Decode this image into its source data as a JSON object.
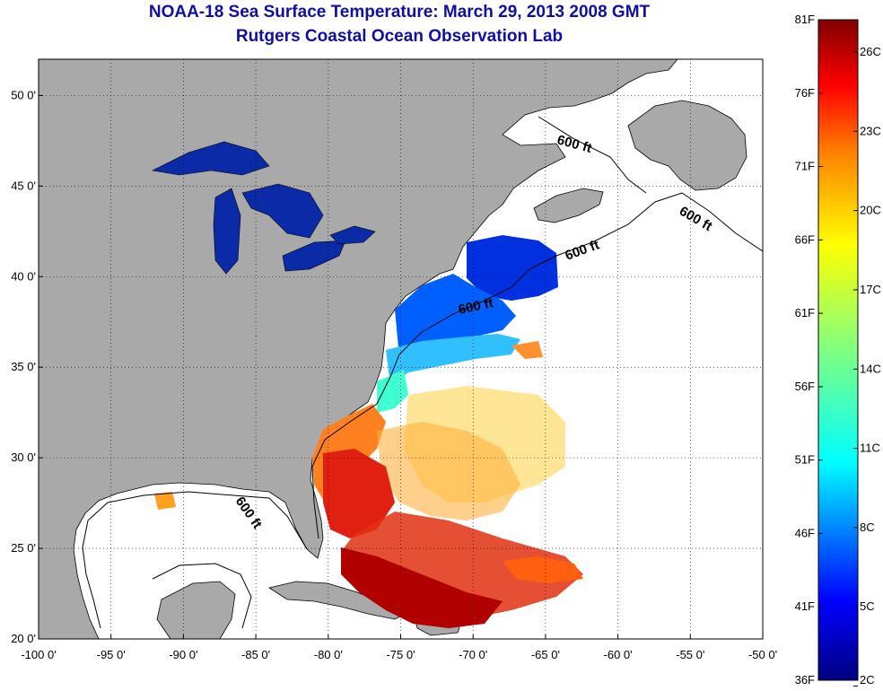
{
  "title": {
    "line1": "NOAA-18 Sea Surface Temperature:  March 29, 2013 2008 GMT",
    "line2": "Rutgers Coastal Ocean Observation Lab"
  },
  "map": {
    "lon_range": [
      -100,
      -50
    ],
    "lat_range": [
      20,
      52
    ],
    "lon_ticks": [
      "-100 0'",
      "-95 0'",
      "-90 0'",
      "-85 0'",
      "-80 0'",
      "-75 0'",
      "-70 0'",
      "-65 0'",
      "-60 0'",
      "-55 0'",
      "-50 0'"
    ],
    "lat_ticks": [
      "20 0'",
      "25 0'",
      "30 0'",
      "35 0'",
      "40 0'",
      "45 0'",
      "50 0'"
    ],
    "land_color": "#a9a9a9",
    "grid": "dotted",
    "contour_labels": [
      "600 ft",
      "600 ft",
      "600 ft",
      "600 ft",
      "600 ft"
    ]
  },
  "colorbar": {
    "fahrenheit_labels": [
      "81F",
      "76F",
      "71F",
      "66F",
      "61F",
      "56F",
      "51F",
      "46F",
      "41F",
      "36F"
    ],
    "celsius_labels": [
      "26C",
      "23C",
      "20C",
      "17C",
      "14C",
      "11C",
      "8C",
      "5C",
      "2C"
    ],
    "colors": [
      "#000080",
      "#0000ff",
      "#0080ff",
      "#00ffff",
      "#80ff80",
      "#ffff00",
      "#ff8000",
      "#ff0000",
      "#800000"
    ]
  }
}
